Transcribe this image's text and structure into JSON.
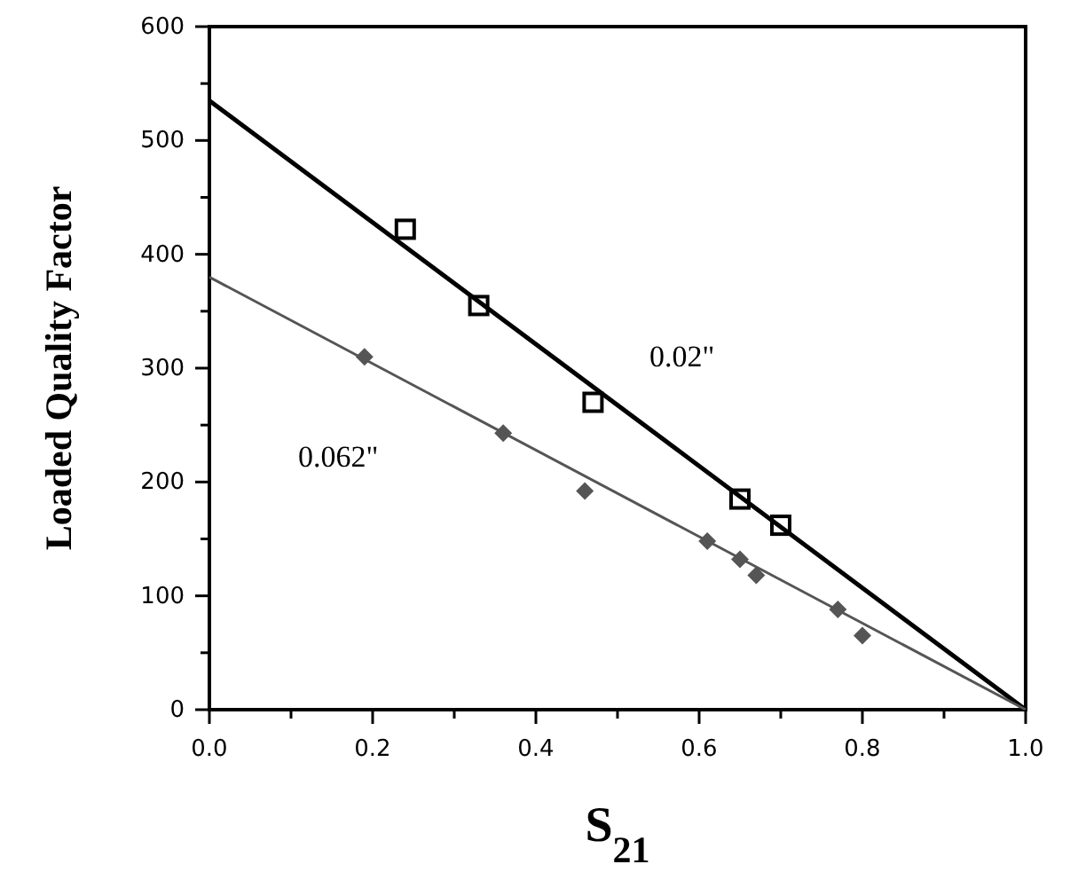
{
  "chart_data": {
    "type": "scatter",
    "xlabel": "S$_{21}$",
    "ylabel": "Loaded Quality Factor",
    "xlim": [
      0,
      1
    ],
    "ylim": [
      0,
      600
    ],
    "xticks": [
      {
        "value": 0,
        "label": "0.0"
      },
      {
        "value": 0.1,
        "label": null
      },
      0.2,
      {
        "value": 0.3,
        "label": null
      },
      0.4,
      {
        "value": 0.5,
        "label": null
      },
      0.6,
      {
        "value": 0.7,
        "label": null
      },
      0.8,
      {
        "value": 0.9,
        "label": null
      },
      {
        "value": 1,
        "label": "1.0"
      }
    ],
    "yticks": [
      0,
      {
        "value": 50,
        "label": null
      },
      100,
      {
        "value": 150,
        "label": null
      },
      200,
      {
        "value": 250,
        "label": null
      },
      300,
      {
        "value": 350,
        "label": null
      },
      400,
      {
        "value": 450,
        "label": null
      },
      500,
      {
        "value": 550,
        "label": null
      },
      600
    ],
    "grid": false,
    "legend": false,
    "series": [
      {
        "color": "#000000",
        "marker": "square",
        "x": [
          0.24,
          0.33,
          0.47,
          0.65,
          0.7
        ],
        "values": [
          422,
          355,
          270,
          185,
          162
        ]
      },
      {
        "color": "#555555",
        "marker": "diamond",
        "x": [
          0.19,
          0.36,
          0.46,
          0.61,
          0.65,
          0.67,
          0.77,
          0.8
        ],
        "values": [
          310,
          243,
          192,
          148,
          132,
          118,
          88,
          65
        ]
      },
      {
        "type": "line",
        "name": "0.02\"",
        "color": "#000000",
        "marker": "none",
        "line_style": "solid",
        "x": [
          0,
          1
        ],
        "values": [
          535,
          0
        ]
      },
      {
        "type": "line",
        "name": "0.062\"",
        "color": "#555555",
        "marker": "none",
        "line_style": "solid",
        "x": [
          0,
          1
        ],
        "values": [
          380,
          0
        ]
      }
    ]
  }
}
